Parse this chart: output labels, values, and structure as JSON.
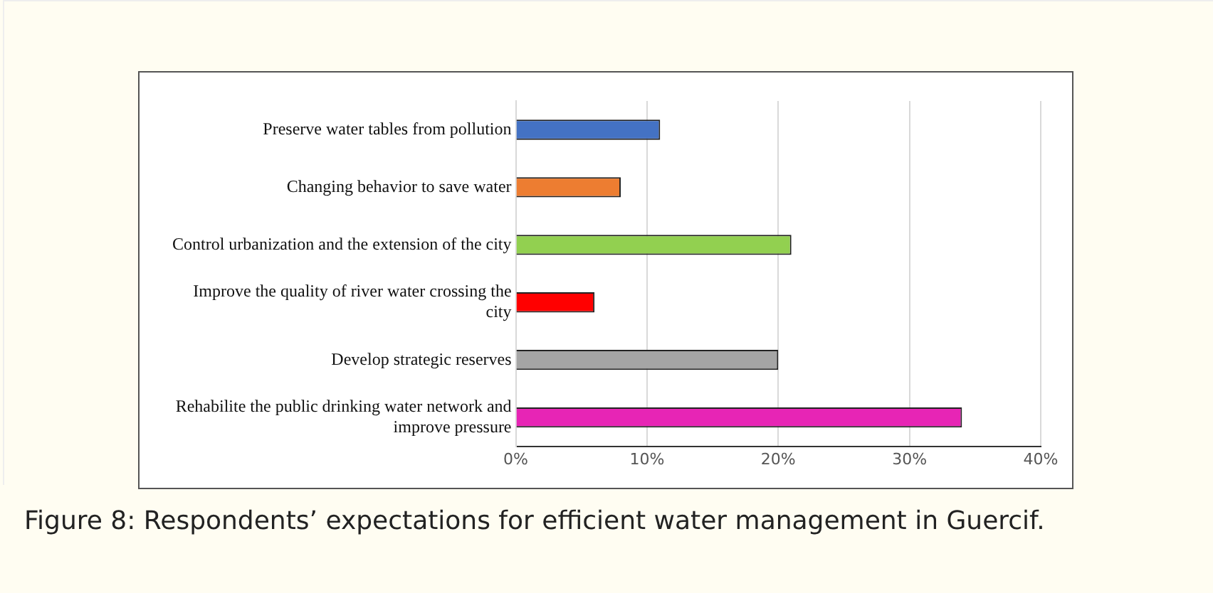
{
  "chart_data": {
    "type": "bar",
    "orientation": "horizontal",
    "categories": [
      "Preserve water tables from pollution",
      "Changing behavior to save water",
      "Control urbanization and the extension of the city",
      "Improve the quality of river water crossing the city",
      "Develop strategic reserves",
      "Rehabilite the public drinking water network and improve pressure"
    ],
    "values": [
      11,
      8,
      21,
      6,
      20,
      34
    ],
    "colors": [
      "#4472c4",
      "#ed7d31",
      "#92d050",
      "#ff0000",
      "#a5a5a5",
      "#e725b5"
    ],
    "xlim": [
      0,
      40
    ],
    "xticks": [
      {
        "value": 0,
        "label": "0%"
      },
      {
        "value": 10,
        "label": "10%"
      },
      {
        "value": 20,
        "label": "20%"
      },
      {
        "value": 30,
        "label": "30%"
      },
      {
        "value": 40,
        "label": "40%"
      }
    ],
    "grid": "x",
    "legend": false,
    "annotations": [
      "Figure 8: Respondents’ expectations for efficient water management in Guercif."
    ]
  }
}
